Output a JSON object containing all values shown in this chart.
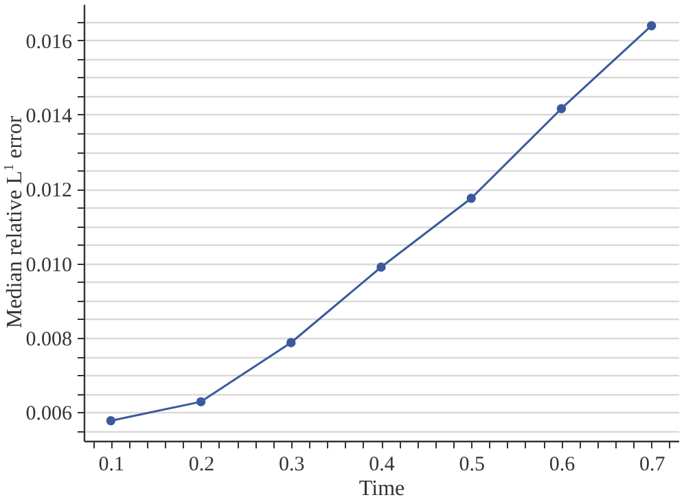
{
  "chart_data": {
    "type": "line",
    "xlabel": "Time",
    "ylabel": "Median relative L$^{1}$ error",
    "x": [
      0.1,
      0.2,
      0.3,
      0.4,
      0.5,
      0.6,
      0.7
    ],
    "series": [
      {
        "color": "#3a5a9c",
        "values": [
          0.00577,
          0.00628,
          0.00787,
          0.0099,
          0.01175,
          0.01416,
          0.01639
        ]
      }
    ],
    "xlim": [
      0.07,
      0.73
    ],
    "xticks": [
      {
        "value": 0.08,
        "label": null
      },
      0.1,
      {
        "value": 0.12,
        "label": null
      },
      {
        "value": 0.14,
        "label": null
      },
      {
        "value": 0.16,
        "label": null
      },
      {
        "value": 0.18,
        "label": null
      },
      0.2,
      {
        "value": 0.22,
        "label": null
      },
      {
        "value": 0.24,
        "label": null
      },
      {
        "value": 0.26,
        "label": null
      },
      {
        "value": 0.28,
        "label": null
      },
      0.3,
      {
        "value": 0.32,
        "label": null
      },
      {
        "value": 0.34,
        "label": null
      },
      {
        "value": 0.36,
        "label": null
      },
      {
        "value": 0.38,
        "label": null
      },
      0.4,
      {
        "value": 0.42,
        "label": null
      },
      {
        "value": 0.44,
        "label": null
      },
      {
        "value": 0.46,
        "label": null
      },
      {
        "value": 0.48,
        "label": null
      },
      0.5,
      {
        "value": 0.52,
        "label": null
      },
      {
        "value": 0.54,
        "label": null
      },
      {
        "value": 0.56,
        "label": null
      },
      {
        "value": 0.58,
        "label": null
      },
      0.6,
      {
        "value": 0.62,
        "label": null
      },
      {
        "value": 0.64,
        "label": null
      },
      {
        "value": 0.66,
        "label": null
      },
      {
        "value": 0.68,
        "label": null
      },
      0.7,
      {
        "value": 0.72,
        "label": null
      }
    ],
    "ylim": [
      0.00523,
      0.01697
    ],
    "yticks": [
      {
        "value": 0.0055,
        "label": null
      },
      0.006,
      {
        "value": 0.0065,
        "label": null
      },
      {
        "value": 0.007,
        "label": null
      },
      {
        "value": 0.0075,
        "label": null
      },
      0.008,
      {
        "value": 0.0085,
        "label": null
      },
      {
        "value": 0.009,
        "label": null
      },
      {
        "value": 0.0095,
        "label": null
      },
      {
        "value": 0.01,
        "label": "0.010"
      },
      {
        "value": 0.0105,
        "label": null
      },
      {
        "value": 0.011,
        "label": null
      },
      {
        "value": 0.0115,
        "label": null
      },
      0.012,
      {
        "value": 0.0125,
        "label": null
      },
      {
        "value": 0.013,
        "label": null
      },
      {
        "value": 0.0135,
        "label": null
      },
      0.014,
      {
        "value": 0.0145,
        "label": null
      },
      {
        "value": 0.015,
        "label": null
      },
      {
        "value": 0.0155,
        "label": null
      },
      0.016,
      {
        "value": 0.0165,
        "label": null
      }
    ],
    "grid": "y",
    "marker": "circle",
    "line_style": "solid",
    "tick_labels": "xy"
  }
}
